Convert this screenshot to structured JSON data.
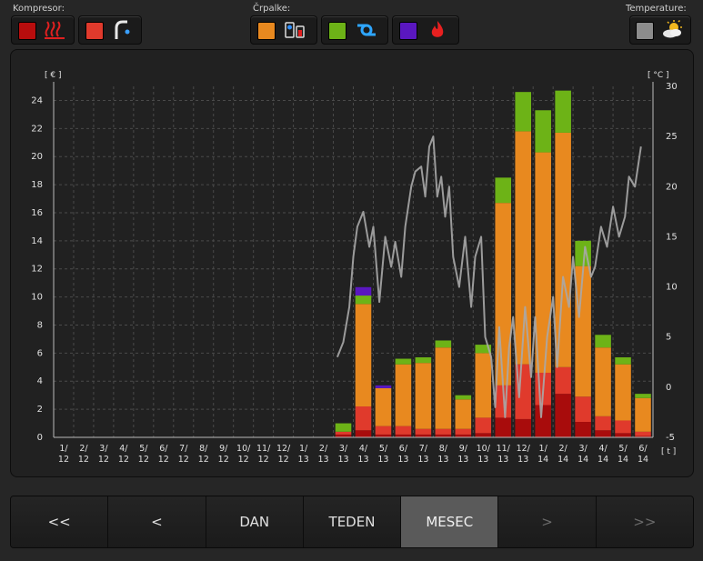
{
  "groups": {
    "kompresor": {
      "label": "Kompresor:"
    },
    "crpalke": {
      "label": "Črpalke:"
    },
    "temperature": {
      "label": "Temperature:"
    }
  },
  "legend_colors": {
    "heating": "#d01515",
    "hot_water": "#e03a2c",
    "pump_ground": "#e8891f",
    "pump_circulation": "#6db317",
    "pump_aux": "#5a17c0",
    "temperature": "#8c8c8c"
  },
  "icons": [
    "heating-waves-icon",
    "water-tap-icon",
    "ground-pump-icon",
    "circulation-pump-icon",
    "flame-icon",
    "weather-sun-cloud-icon"
  ],
  "nav": {
    "first": "<<",
    "prev": "<",
    "day": "DAN",
    "week": "TEDEN",
    "month": "MESEC",
    "next": ">",
    "last": ">>"
  },
  "chart_data": {
    "type": "bar",
    "stacked": true,
    "ylabel": "[ € ]",
    "y2label": "[ °C ]",
    "xlabel": "[ t ]",
    "ylim": [
      0,
      25
    ],
    "y2lim": [
      -5,
      30
    ],
    "yticks": [
      0,
      2,
      4,
      6,
      8,
      10,
      12,
      14,
      16,
      18,
      20,
      22,
      24
    ],
    "y2ticks": [
      -5,
      0,
      5,
      10,
      15,
      20,
      25,
      30
    ],
    "grid": true,
    "categories": [
      [
        "1/",
        "12"
      ],
      [
        "2/",
        "12"
      ],
      [
        "3/",
        "12"
      ],
      [
        "4/",
        "12"
      ],
      [
        "5/",
        "12"
      ],
      [
        "6/",
        "12"
      ],
      [
        "7/",
        "12"
      ],
      [
        "8/",
        "12"
      ],
      [
        "9/",
        "12"
      ],
      [
        "10/",
        "12"
      ],
      [
        "11/",
        "12"
      ],
      [
        "12/",
        "12"
      ],
      [
        "1/",
        "13"
      ],
      [
        "2/",
        "13"
      ],
      [
        "3/",
        "13"
      ],
      [
        "4/",
        "13"
      ],
      [
        "5/",
        "13"
      ],
      [
        "6/",
        "13"
      ],
      [
        "7/",
        "13"
      ],
      [
        "8/",
        "13"
      ],
      [
        "9/",
        "13"
      ],
      [
        "10/",
        "13"
      ],
      [
        "11/",
        "13"
      ],
      [
        "12/",
        "13"
      ],
      [
        "1/",
        "14"
      ],
      [
        "2/",
        "14"
      ],
      [
        "3/",
        "14"
      ],
      [
        "4/",
        "14"
      ],
      [
        "5/",
        "14"
      ],
      [
        "6/",
        "14"
      ]
    ],
    "series": [
      {
        "color": "#a80c0c",
        "values": [
          0,
          0,
          0,
          0,
          0,
          0,
          0,
          0,
          0,
          0,
          0,
          0,
          0,
          0,
          0.2,
          0.5,
          0.2,
          0.2,
          0.2,
          0.2,
          0.2,
          0.3,
          1.4,
          1.3,
          2.3,
          3.1,
          1.1,
          0.5,
          0.3,
          0.1
        ]
      },
      {
        "color": "#e03a2c",
        "values": [
          0,
          0,
          0,
          0,
          0,
          0,
          0,
          0,
          0,
          0,
          0,
          0,
          0,
          0,
          0.2,
          1.7,
          0.6,
          0.6,
          0.4,
          0.4,
          0.4,
          1.1,
          2.3,
          3.9,
          2.3,
          1.9,
          1.8,
          1.0,
          0.9,
          0.3
        ]
      },
      {
        "color": "#e8891f",
        "values": [
          0,
          0,
          0,
          0,
          0,
          0,
          0,
          0,
          0,
          0,
          0,
          0,
          0,
          0,
          0,
          7.3,
          2.7,
          4.4,
          4.7,
          5.8,
          2.1,
          4.6,
          13.0,
          16.6,
          15.7,
          16.7,
          9.3,
          4.9,
          4.0,
          2.4
        ]
      },
      {
        "color": "#6db317",
        "values": [
          0,
          0,
          0,
          0,
          0,
          0,
          0,
          0,
          0,
          0,
          0,
          0,
          0,
          0,
          0.6,
          0.6,
          0,
          0.4,
          0.4,
          0.5,
          0.3,
          0.6,
          1.8,
          2.8,
          3.0,
          3.0,
          1.8,
          0.9,
          0.5,
          0.3
        ]
      },
      {
        "color": "#5a17c0",
        "values": [
          0,
          0,
          0,
          0,
          0,
          0,
          0,
          0,
          0,
          0,
          0,
          0,
          0,
          0,
          0,
          0.6,
          0.2,
          0,
          0,
          0,
          0,
          0,
          0,
          0,
          0,
          0,
          0,
          0,
          0,
          0
        ]
      }
    ],
    "temperature_line": {
      "color": "#a8a8a8",
      "x": [
        14.2,
        14.5,
        14.8,
        15.0,
        15.2,
        15.5,
        15.8,
        16.0,
        16.3,
        16.6,
        16.9,
        17.1,
        17.4,
        17.6,
        17.9,
        18.1,
        18.4,
        18.6,
        18.8,
        19.0,
        19.2,
        19.4,
        19.6,
        19.8,
        20.0,
        20.3,
        20.6,
        20.9,
        21.1,
        21.4,
        21.6,
        21.9,
        22.1,
        22.3,
        22.6,
        22.8,
        23.0,
        23.3,
        23.6,
        23.9,
        24.1,
        24.4,
        24.7,
        25.0,
        25.2,
        25.5,
        25.8,
        26.0,
        26.3,
        26.6,
        26.9,
        27.1,
        27.4,
        27.7,
        28.0,
        28.3,
        28.6,
        28.8,
        29.1,
        29.4
      ],
      "y": [
        3,
        4.5,
        8,
        13,
        16,
        17.5,
        14,
        16,
        8.5,
        15,
        12,
        14.5,
        11,
        16,
        20,
        21.5,
        22,
        19,
        24,
        25,
        19,
        21,
        17,
        20,
        13,
        10,
        15,
        8,
        13,
        15,
        5,
        3,
        -2,
        6,
        -3,
        4,
        7,
        -1,
        8,
        1,
        7,
        -3,
        5,
        9,
        2,
        11,
        8,
        13,
        7,
        14,
        11,
        12,
        16,
        14,
        18,
        15,
        17,
        21,
        20,
        24
      ]
    }
  }
}
